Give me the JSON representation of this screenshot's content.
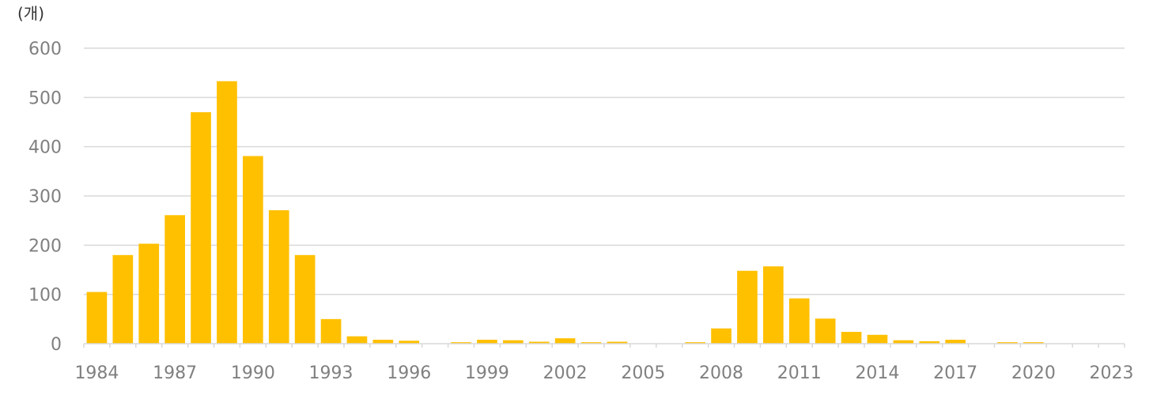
{
  "chart_data": {
    "type": "bar",
    "unit_label": "(개)",
    "ylim": [
      0,
      600
    ],
    "yticks": [
      "0",
      "100",
      "200",
      "300",
      "400",
      "500",
      "600"
    ],
    "grid": true,
    "bar_color": "#FFC000",
    "grid_color": "#D9D9D9",
    "categories": [
      "1984",
      "1985",
      "1986",
      "1987",
      "1988",
      "1989",
      "1990",
      "1991",
      "1992",
      "1993",
      "1994",
      "1995",
      "1996",
      "1997",
      "1998",
      "1999",
      "2000",
      "2001",
      "2002",
      "2003",
      "2004",
      "2005",
      "2006",
      "2007",
      "2008",
      "2009",
      "2010",
      "2011",
      "2012",
      "2013",
      "2014",
      "2015",
      "2016",
      "2017",
      "2018",
      "2019",
      "2020",
      "2021",
      "2022",
      "2023"
    ],
    "values": [
      105,
      180,
      203,
      261,
      470,
      533,
      381,
      271,
      180,
      50,
      15,
      8,
      6,
      0,
      3,
      8,
      7,
      4,
      11,
      3,
      4,
      0,
      0,
      3,
      31,
      148,
      157,
      92,
      51,
      24,
      18,
      7,
      5,
      8,
      0,
      3,
      3,
      0,
      0,
      0
    ],
    "xtick_labels": [
      "1984",
      "1987",
      "1990",
      "1993",
      "1996",
      "1999",
      "2002",
      "2005",
      "2008",
      "2011",
      "2014",
      "2017",
      "2020",
      "2023"
    ]
  }
}
